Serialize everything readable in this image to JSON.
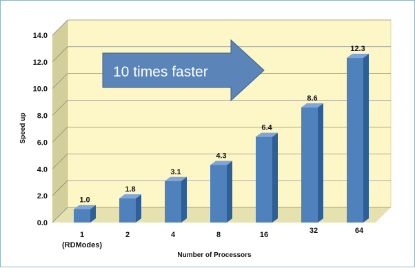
{
  "chart_data": {
    "type": "bar",
    "categories": [
      "1",
      "2",
      "4",
      "8",
      "16",
      "32",
      "64"
    ],
    "category_sublabels": [
      "(RDModes)",
      "",
      "",
      "",
      "",
      "",
      ""
    ],
    "values": [
      1.0,
      1.8,
      3.1,
      4.3,
      6.4,
      8.6,
      12.3
    ],
    "data_labels": [
      "1.0",
      "1.8",
      "3.1",
      "4.3",
      "6.4",
      "8.6",
      "12.3"
    ],
    "ytick_labels": [
      "0.0",
      "2.0",
      "4.0",
      "6.0",
      "8.0",
      "10.0",
      "12.0",
      "14.0"
    ],
    "ylim": [
      0,
      14
    ],
    "xlabel": "Number of Processors",
    "ylabel": "Speed up",
    "annotation": "10 times faster",
    "grid": true,
    "legend": "none",
    "colors": {
      "bar_front": "#4f81bd",
      "bar_side": "#2f5f97",
      "bar_top": "#7ea6d8",
      "wall": "#fdf7c8",
      "floor": "#e6e2b0",
      "side_wall": "#d3cf9a",
      "arrow": "#5b84b8"
    }
  }
}
